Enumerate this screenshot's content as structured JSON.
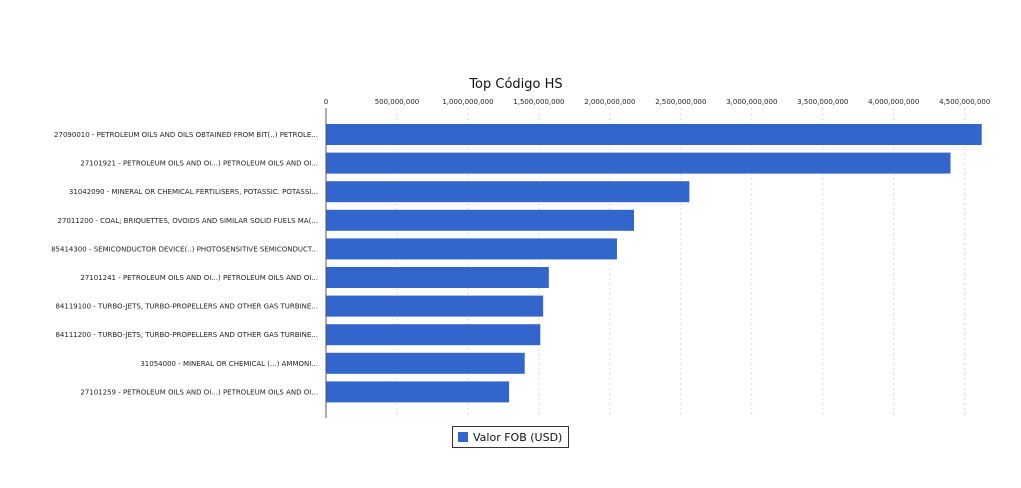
{
  "colors": {
    "bar": "#3366cc",
    "grid": "#d0d0d0",
    "axis": "#555555"
  },
  "chart_data": {
    "type": "bar",
    "orientation": "horizontal",
    "title": "Top Código HS",
    "legend": {
      "label": "Valor FOB (USD)",
      "placement": "bottom-center"
    },
    "xlim": [
      0,
      4650000000
    ],
    "x_ticks": [
      0,
      500000000,
      1000000000,
      1500000000,
      2000000000,
      2500000000,
      3000000000,
      3500000000,
      4000000000,
      4500000000
    ],
    "x_tick_labels": [
      "0",
      "500,000,000",
      "1,000,000,000",
      "1,500,000,000",
      "2,000,000,000",
      "2,500,000,000",
      "3,000,000,000",
      "3,500,000,000",
      "4,000,000,000",
      "4,500,000,000"
    ],
    "grid": true,
    "categories": [
      "27090010 - PETROLEUM OILS AND OILS OBTAINED FROM BIT(..) PETROLE...",
      "27101921 - PETROLEUM OILS AND OI...) PETROLEUM OILS AND OI...",
      "31042090 - MINERAL OR CHEMICAL FERTILISERS, POTASSIC. POTASSI...",
      "27011200 - COAL; BRIQUETTES, OVOIDS AND SIMILAR SOLID FUELS MA(...",
      "85414300 - SEMICONDUCTOR DEVICE(..) PHOTOSENSITIVE SEMICONDUCT...",
      "27101241 - PETROLEUM OILS AND OI...) PETROLEUM OILS AND OI...",
      "84119100 - TURBO-JETS, TURBO-PROPELLERS AND OTHER GAS TURBINE...",
      "84111200 - TURBO-JETS, TURBO-PROPELLERS AND OTHER GAS TURBINE...",
      "31054000 - MINERAL OR CHEMICAL (...) AMMONI...",
      "27101259 - PETROLEUM OILS AND OI...) PETROLEUM OILS AND OI..."
    ],
    "series": [
      {
        "name": "Valor FOB (USD)",
        "values": [
          4620000000,
          4400000000,
          2560000000,
          2170000000,
          2050000000,
          1570000000,
          1530000000,
          1510000000,
          1400000000,
          1290000000
        ]
      }
    ]
  }
}
